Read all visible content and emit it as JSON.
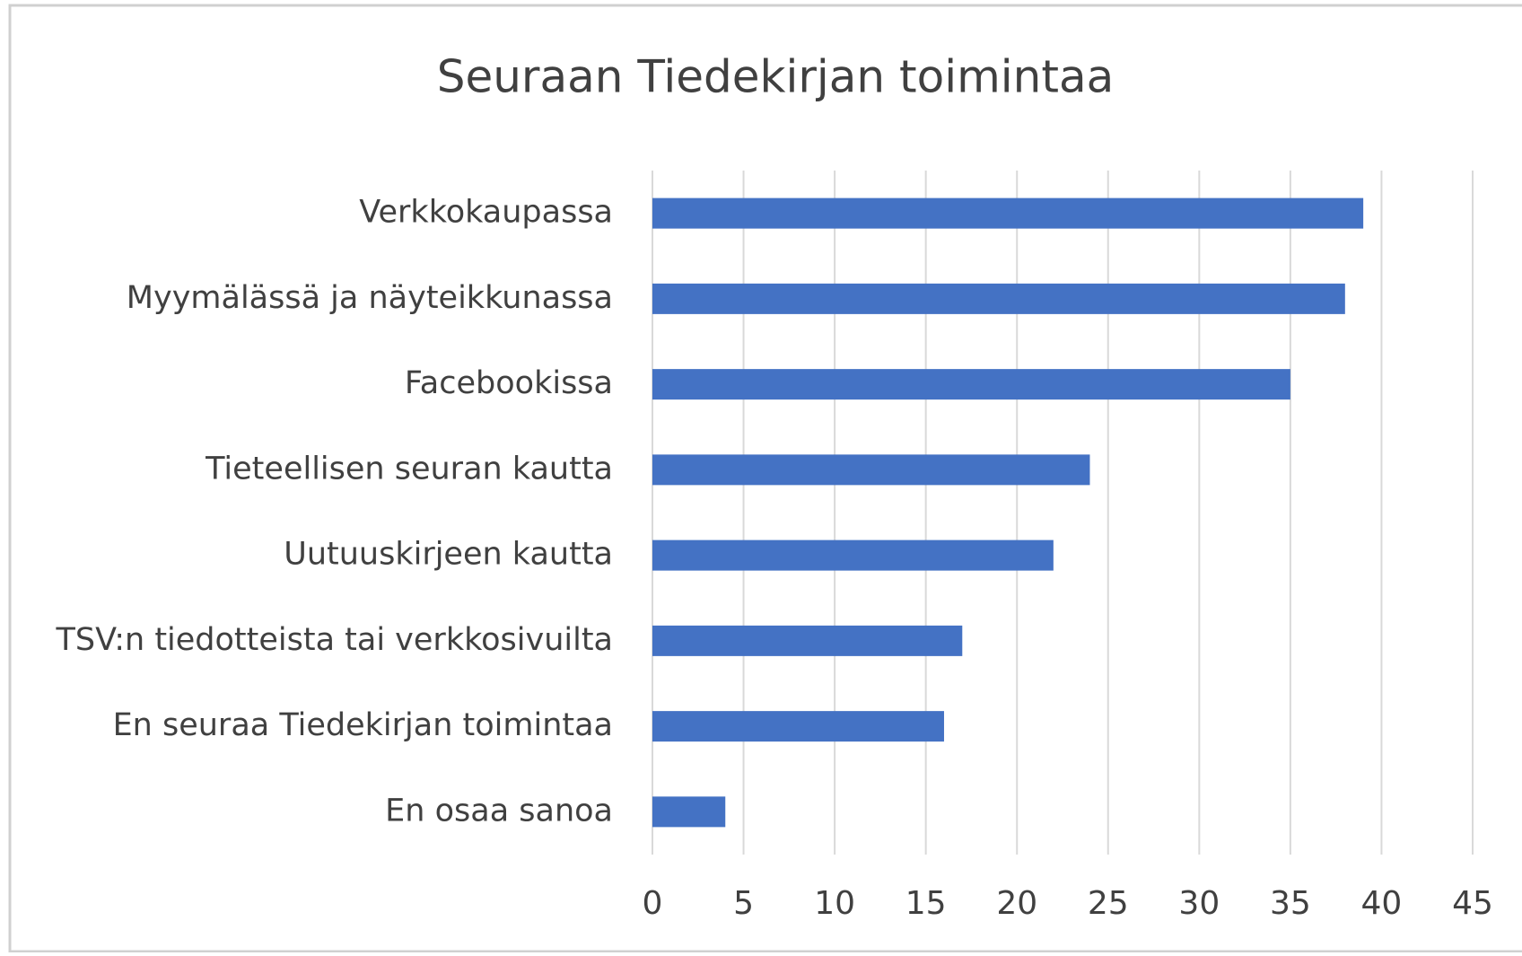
{
  "chart_data": {
    "type": "barh",
    "title": "Seuraan Tiedekirjan toimintaa",
    "categories": [
      "Verkkokaupassa",
      "Myymälässä ja näyteikkunassa",
      "Facebookissa",
      "Tieteellisen seuran kautta",
      "Uutuuskirjeen kautta",
      "TSV:n tiedotteista tai verkkosivuilta",
      "En seuraa Tiedekirjan toimintaa",
      "En osaa sanoa"
    ],
    "values": [
      39,
      38,
      35,
      24,
      22,
      17,
      16,
      4
    ],
    "color": "#4472c4",
    "xlim": [
      0,
      45
    ],
    "xticks": [
      0,
      5,
      10,
      15,
      20,
      25,
      30,
      35,
      40,
      45
    ],
    "grid": true
  }
}
